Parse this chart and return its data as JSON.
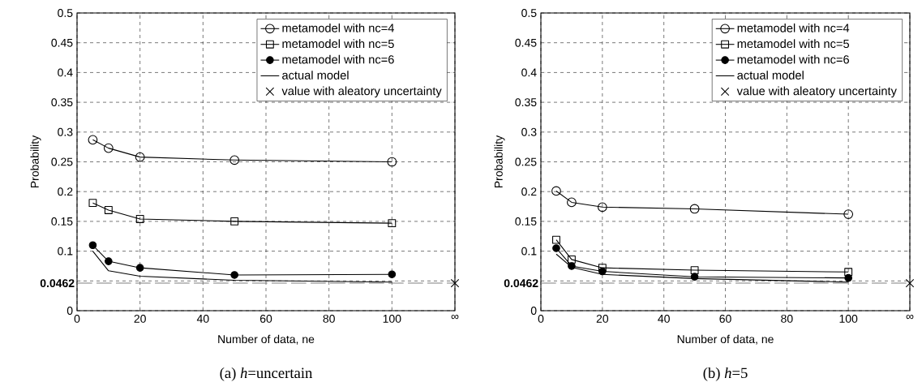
{
  "chart_data": [
    {
      "type": "line",
      "title": "(a) *h*=uncertain",
      "xlabel": "Number of data, ne",
      "ylabel": "Probability",
      "x": [
        5,
        10,
        20,
        50,
        100
      ],
      "xlim": [
        0,
        120
      ],
      "xticks": [
        0,
        20,
        40,
        60,
        80,
        100,
        {
          "value": 120,
          "label": "∞"
        }
      ],
      "ylim": [
        0,
        0.5
      ],
      "yticks": [
        0,
        {
          "value": 0.05,
          "label": null
        },
        0.1,
        0.15,
        0.2,
        0.25,
        0.3,
        0.35,
        0.4,
        0.45,
        0.5
      ],
      "grid": true,
      "legend": "top right",
      "line_style": "solid",
      "series": [
        {
          "name": "metamodel with nc=4",
          "color": "#000000",
          "marker": "circle",
          "values": [
            0.287,
            0.273,
            0.258,
            0.253,
            0.25
          ]
        },
        {
          "name": "metamodel with nc=5",
          "color": "#000000",
          "marker": "square",
          "values": [
            0.181,
            0.169,
            0.154,
            0.15,
            0.147
          ]
        },
        {
          "name": "metamodel with nc=6",
          "color": "#000000",
          "marker": "circle",
          "values": [
            0.11,
            0.083,
            0.072,
            0.06,
            0.061
          ]
        },
        {
          "name": "actual model",
          "color": "#000000",
          "marker": "none",
          "values": [
            0.1,
            0.067,
            0.058,
            0.051,
            0.048
          ]
        },
        {
          "name": "value with aleatory uncertainty",
          "type": "scatter",
          "color": "#000000",
          "marker": "cross",
          "x": [
            120
          ],
          "values": [
            0.0462
          ]
        }
      ],
      "ref_lines": [
        {
          "axis": "y",
          "value": 0.0462,
          "label": "0.0462",
          "color": "#808080",
          "line_style": "dashed"
        }
      ]
    },
    {
      "type": "line",
      "title": "(b) *h*=5",
      "xlabel": "Number of data, ne",
      "ylabel": "Probability",
      "x": [
        5,
        10,
        20,
        50,
        100
      ],
      "xlim": [
        0,
        120
      ],
      "xticks": [
        0,
        20,
        40,
        60,
        80,
        100,
        {
          "value": 120,
          "label": "∞"
        }
      ],
      "ylim": [
        0,
        0.5
      ],
      "yticks": [
        0,
        {
          "value": 0.05,
          "label": null
        },
        0.1,
        0.15,
        0.2,
        0.25,
        0.3,
        0.35,
        0.4,
        0.45,
        0.5
      ],
      "grid": true,
      "legend": "top right",
      "line_style": "solid",
      "series": [
        {
          "name": "metamodel with nc=4",
          "color": "#000000",
          "marker": "circle",
          "values": [
            0.201,
            0.182,
            0.174,
            0.171,
            0.162
          ]
        },
        {
          "name": "metamodel with nc=5",
          "color": "#000000",
          "marker": "square",
          "values": [
            0.119,
            0.086,
            0.072,
            0.068,
            0.065
          ]
        },
        {
          "name": "metamodel with nc=6",
          "color": "#000000",
          "marker": "circle",
          "values": [
            0.105,
            0.075,
            0.066,
            0.057,
            0.055
          ]
        },
        {
          "name": "actual model",
          "color": "#000000",
          "marker": "none",
          "values": [
            0.095,
            0.073,
            0.061,
            0.054,
            0.048
          ]
        },
        {
          "name": "value with aleatory uncertainty",
          "type": "scatter",
          "color": "#000000",
          "marker": "cross",
          "x": [
            120
          ],
          "values": [
            0.0462
          ]
        }
      ],
      "ref_lines": [
        {
          "axis": "y",
          "value": 0.0462,
          "label": "0.0462",
          "color": "#808080",
          "line_style": "dashed"
        }
      ]
    }
  ]
}
